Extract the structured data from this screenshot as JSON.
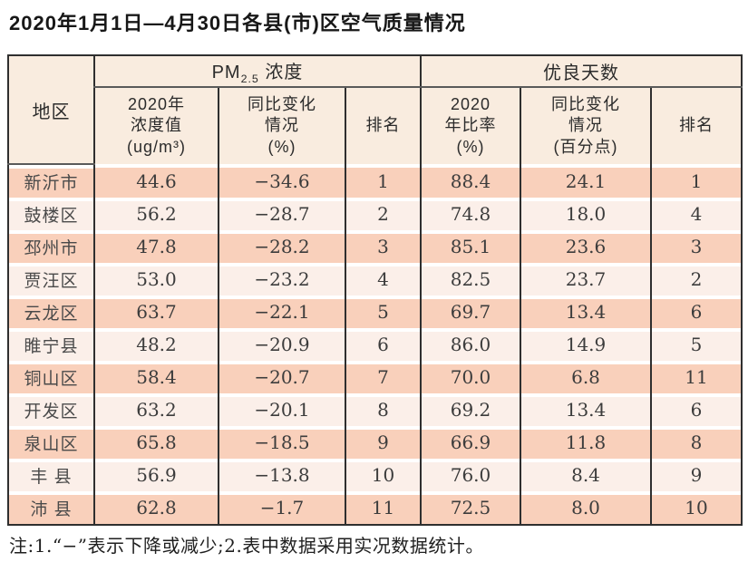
{
  "page": {
    "title": "2020年1月1日—4月30日各县(市)区空气质量情况",
    "note": "注:1.“−”表示下降或减少;2.表中数据采用实况数据统计。"
  },
  "table": {
    "header": {
      "region": "地区",
      "pm_group": {
        "prefix": "PM",
        "sub": "2.5",
        "suffix": " 浓度"
      },
      "days_group": "优良天数",
      "sub": [
        [
          "2020年",
          "浓度值",
          "(ug/m³)"
        ],
        [
          "同比变化",
          "情况",
          "(%)"
        ],
        "排名",
        [
          "2020",
          "年比率",
          "(%)"
        ],
        [
          "同比变化",
          "情况",
          "(百分点)"
        ],
        "排名"
      ]
    },
    "rows": [
      {
        "region": "新沂市",
        "pm_value": "44.6",
        "pm_change": "−34.6",
        "pm_rank": "1",
        "days_ratio": "88.4",
        "days_change": "24.1",
        "days_rank": "1"
      },
      {
        "region": "鼓楼区",
        "pm_value": "56.2",
        "pm_change": "−28.7",
        "pm_rank": "2",
        "days_ratio": "74.8",
        "days_change": "18.0",
        "days_rank": "4"
      },
      {
        "region": "邳州市",
        "pm_value": "47.8",
        "pm_change": "−28.2",
        "pm_rank": "3",
        "days_ratio": "85.1",
        "days_change": "23.6",
        "days_rank": "3"
      },
      {
        "region": "贾汪区",
        "pm_value": "53.0",
        "pm_change": "−23.2",
        "pm_rank": "4",
        "days_ratio": "82.5",
        "days_change": "23.7",
        "days_rank": "2"
      },
      {
        "region": "云龙区",
        "pm_value": "63.7",
        "pm_change": "−22.1",
        "pm_rank": "5",
        "days_ratio": "69.7",
        "days_change": "13.4",
        "days_rank": "6"
      },
      {
        "region": "睢宁县",
        "pm_value": "48.2",
        "pm_change": "−20.9",
        "pm_rank": "6",
        "days_ratio": "86.0",
        "days_change": "14.9",
        "days_rank": "5"
      },
      {
        "region": "铜山区",
        "pm_value": "58.4",
        "pm_change": "−20.7",
        "pm_rank": "7",
        "days_ratio": "70.0",
        "days_change": "6.8",
        "days_rank": "11"
      },
      {
        "region": "开发区",
        "pm_value": "63.2",
        "pm_change": "−20.1",
        "pm_rank": "8",
        "days_ratio": "69.2",
        "days_change": "13.4",
        "days_rank": "6"
      },
      {
        "region": "泉山区",
        "pm_value": "65.8",
        "pm_change": "−18.5",
        "pm_rank": "9",
        "days_ratio": "66.9",
        "days_change": "11.8",
        "days_rank": "8"
      },
      {
        "region": "丰 县",
        "pm_value": "56.9",
        "pm_change": "−13.8",
        "pm_rank": "10",
        "days_ratio": "76.0",
        "days_change": "8.4",
        "days_rank": "9"
      },
      {
        "region": "沛 县",
        "pm_value": "62.8",
        "pm_change": "−1.7",
        "pm_rank": "11",
        "days_ratio": "72.5",
        "days_change": "8.0",
        "days_rank": "10"
      }
    ]
  },
  "colors": {
    "row_odd": "#f9d0bb",
    "row_even": "#fbefe9",
    "header_bg": "#f9ecdf",
    "border": "#2f2f2f"
  },
  "chart_data": {
    "type": "table",
    "title": "2020年1月1日—4月30日各县(市)区空气质量情况",
    "column_groups": [
      {
        "label": "PM2.5浓度",
        "columns": [
          1,
          2,
          3
        ]
      },
      {
        "label": "优良天数",
        "columns": [
          4,
          5,
          6
        ]
      }
    ],
    "columns": [
      "地区",
      "2020年浓度值(ug/m³)",
      "同比变化情况(%)",
      "排名",
      "2020年比率(%)",
      "同比变化情况(百分点)",
      "排名"
    ],
    "rows": [
      [
        "新沂市",
        44.6,
        -34.6,
        1,
        88.4,
        24.1,
        1
      ],
      [
        "鼓楼区",
        56.2,
        -28.7,
        2,
        74.8,
        18.0,
        4
      ],
      [
        "邳州市",
        47.8,
        -28.2,
        3,
        85.1,
        23.6,
        3
      ],
      [
        "贾汪区",
        53.0,
        -23.2,
        4,
        82.5,
        23.7,
        2
      ],
      [
        "云龙区",
        63.7,
        -22.1,
        5,
        69.7,
        13.4,
        6
      ],
      [
        "睢宁县",
        48.2,
        -20.9,
        6,
        86.0,
        14.9,
        5
      ],
      [
        "铜山区",
        58.4,
        -20.7,
        7,
        70.0,
        6.8,
        11
      ],
      [
        "开发区",
        63.2,
        -20.1,
        8,
        69.2,
        13.4,
        6
      ],
      [
        "泉山区",
        65.8,
        -18.5,
        9,
        66.9,
        11.8,
        8
      ],
      [
        "丰县",
        56.9,
        -13.8,
        10,
        76.0,
        8.4,
        9
      ],
      [
        "沛县",
        62.8,
        -1.7,
        11,
        72.5,
        8.0,
        10
      ]
    ],
    "note": "注:1.“−”表示下降或减少;2.表中数据采用实况数据统计。"
  }
}
